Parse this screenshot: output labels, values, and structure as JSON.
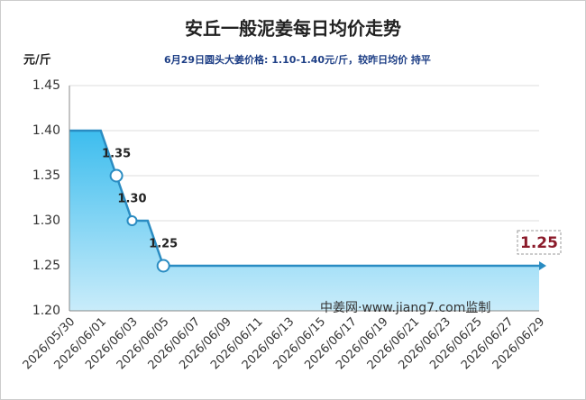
{
  "chart_data": {
    "type": "area",
    "title": "安丘一般泥姜每日均价走势",
    "subtitle": "6月29日圆头大姜价格: 1.10-1.40元/斤，较昨日均价 持平",
    "y_label": "元/斤",
    "watermark": "中姜网·www.jiang7.com监制",
    "categories": [
      "2026/05/30",
      null,
      "2026/06/01",
      null,
      "2026/06/03",
      null,
      "2026/06/05",
      null,
      "2026/06/07",
      null,
      "2026/06/09",
      null,
      "2026/06/11",
      null,
      "2026/06/13",
      null,
      "2026/06/15",
      null,
      "2026/06/17",
      null,
      "2026/06/19",
      null,
      "2026/06/21",
      null,
      "2026/06/23",
      null,
      "2026/06/25",
      null,
      "2026/06/27",
      null,
      "2026/06/29"
    ],
    "values": [
      1.4,
      1.4,
      1.4,
      1.35,
      1.3,
      1.3,
      1.25,
      1.25,
      1.25,
      1.25,
      1.25,
      1.25,
      1.25,
      1.25,
      1.25,
      1.25,
      1.25,
      1.25,
      1.25,
      1.25,
      1.25,
      1.25,
      1.25,
      1.25,
      1.25,
      1.25,
      1.25,
      1.25,
      1.25,
      1.25,
      1.25
    ],
    "value_labels": [
      null,
      null,
      null,
      "1.35",
      "1.30",
      null,
      "1.25",
      null,
      null,
      null,
      null,
      null,
      null,
      null,
      null,
      null,
      null,
      null,
      null,
      null,
      null,
      null,
      null,
      null,
      null,
      null,
      null,
      null,
      null,
      null,
      "1.25"
    ],
    "color": "#2a8cc2",
    "ylim": [
      1.2,
      1.45
    ],
    "yticks": [
      {
        "value": 1.2,
        "label": "1.20"
      },
      1.25,
      {
        "value": 1.3,
        "label": "1.30"
      },
      1.35,
      {
        "value": 1.4,
        "label": "1.40"
      },
      1.45
    ],
    "grid": true
  }
}
